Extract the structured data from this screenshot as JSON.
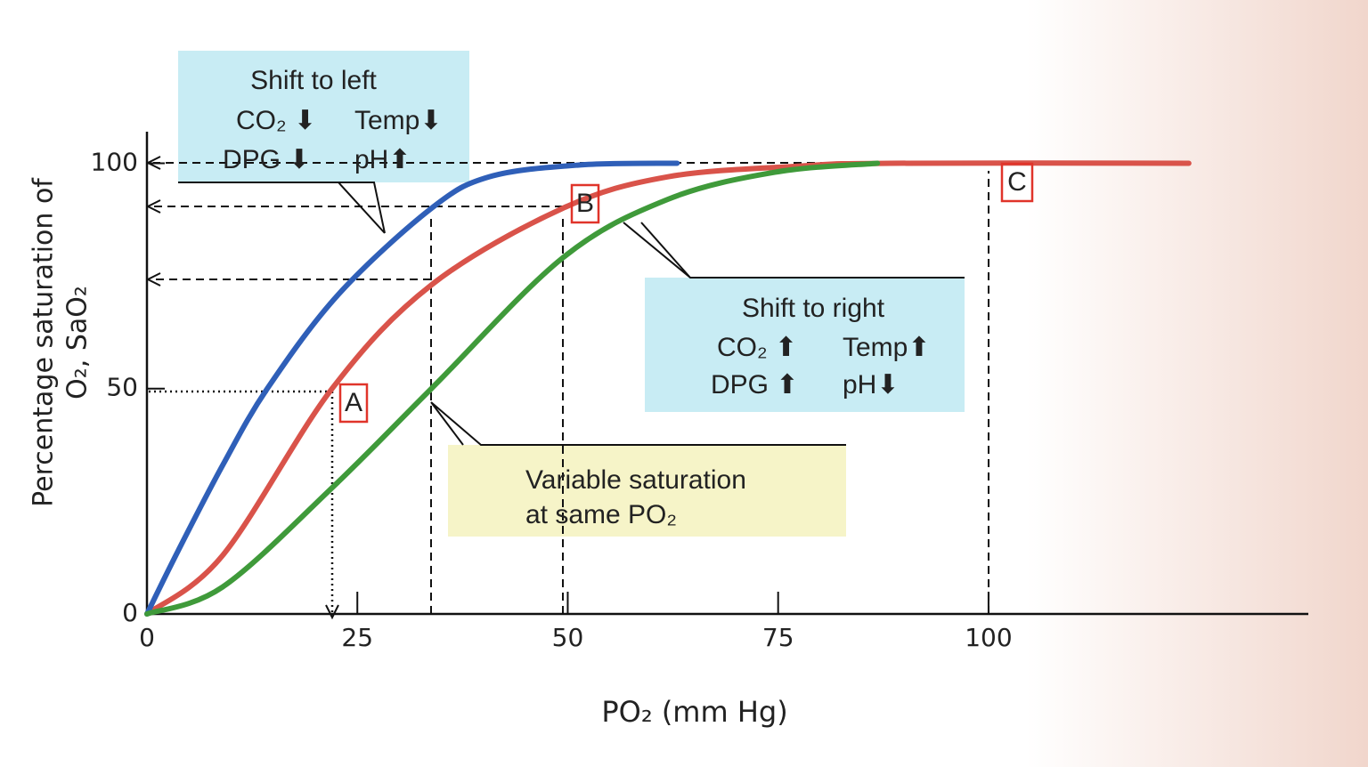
{
  "chart_data": {
    "type": "line",
    "x_label": "PO₂ (mm Hg)",
    "y_label": [
      "Percentage saturation of",
      "O₂, SaO₂"
    ],
    "xlim": [
      0,
      138
    ],
    "ylim": [
      0,
      107
    ],
    "xticks": [
      0,
      25,
      50,
      75,
      100
    ],
    "yticks": [
      0,
      50,
      100
    ],
    "series": [
      {
        "color": "#2f5fb8",
        "x": [
          0,
          3.7,
          9,
          14.3,
          22.8,
          33.8,
          40.7,
          51.3,
          63
        ],
        "values": [
          0,
          14,
          33,
          50,
          71,
          90,
          97,
          99.6,
          100
        ]
      },
      {
        "color": "#d9534a",
        "x": [
          0,
          9,
          22,
          33.8,
          49.4,
          61.9,
          77.8,
          88.4,
          123.8
        ],
        "values": [
          0,
          13,
          50,
          73,
          90,
          97,
          99.4,
          100,
          100
        ]
      },
      {
        "color": "#3f9a3a",
        "x": [
          0,
          9,
          22,
          33.8,
          49.4,
          61.9,
          74.6,
          86.8
        ],
        "values": [
          0,
          6,
          28,
          50,
          79,
          92,
          98,
          100
        ]
      }
    ],
    "annotations": {
      "left": [
        "Shift to left",
        "CO₂ ⬇",
        "Temp⬇",
        "DPG ⬇",
        "pH⬆"
      ],
      "right": [
        "Shift to right",
        "CO₂ ⬆",
        "Temp⬆",
        "DPG ⬆",
        "pH⬇"
      ],
      "variable": [
        "Variable saturation",
        "at same PO₂"
      ],
      "points": [
        "A",
        "B",
        "C"
      ]
    }
  }
}
